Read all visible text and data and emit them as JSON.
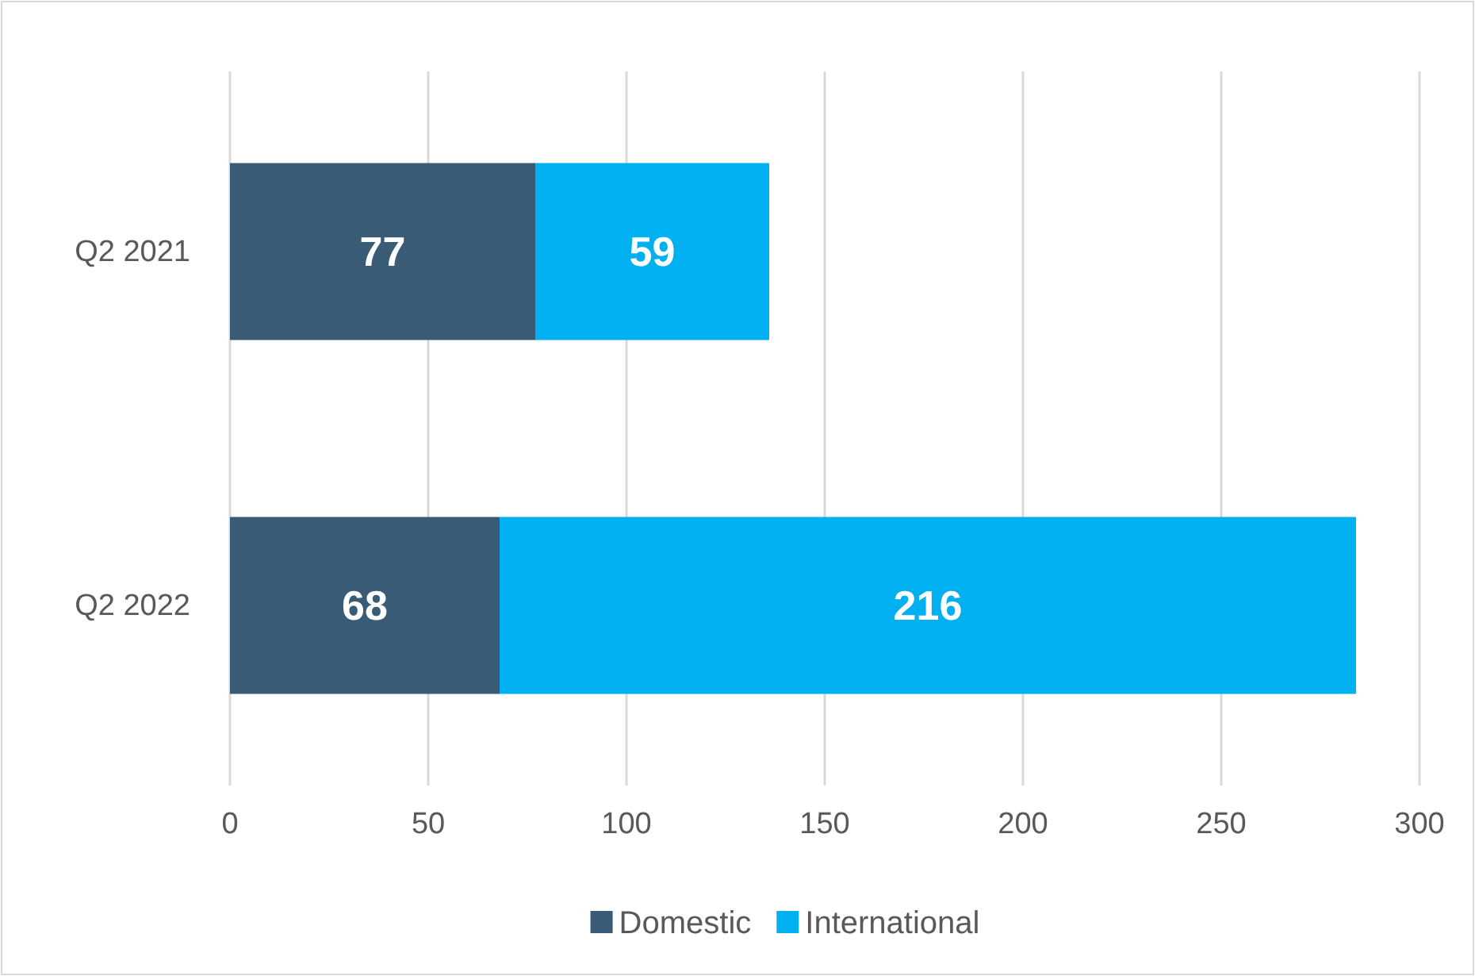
{
  "chart_data": {
    "type": "bar",
    "orientation": "horizontal",
    "stacked": true,
    "categories": [
      "Q2 2021",
      "Q2 2022"
    ],
    "series": [
      {
        "name": "Domestic",
        "color": "#3a5b76",
        "values": [
          77,
          68
        ]
      },
      {
        "name": "International",
        "color": "#00b0f0",
        "values": [
          59,
          216
        ]
      }
    ],
    "xlim": [
      0,
      300
    ],
    "xticks": [
      0,
      50,
      100,
      150,
      200,
      250,
      300
    ],
    "grid": "x",
    "legend": "bottom",
    "data_labels": true
  }
}
